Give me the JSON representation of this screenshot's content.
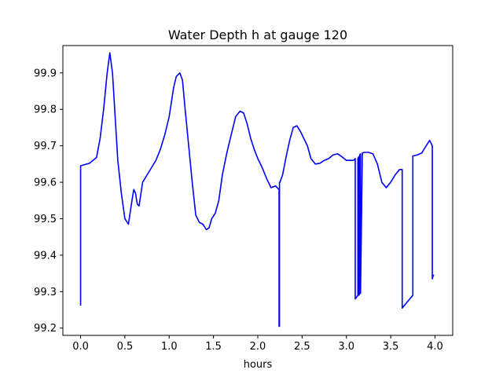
{
  "chart_data": {
    "type": "line",
    "title": "Water Depth h at gauge 120",
    "xlabel": "hours",
    "ylabel": "",
    "xlim": [
      -0.2,
      4.2
    ],
    "ylim": [
      99.18,
      99.975
    ],
    "xticks": [
      0.0,
      0.5,
      1.0,
      1.5,
      2.0,
      2.5,
      3.0,
      3.5,
      4.0
    ],
    "xtick_labels": [
      "0.0",
      "0.5",
      "1.0",
      "1.5",
      "2.0",
      "2.5",
      "3.0",
      "3.5",
      "4.0"
    ],
    "yticks": [
      99.2,
      99.3,
      99.4,
      99.5,
      99.6,
      99.7,
      99.8,
      99.9
    ],
    "ytick_labels": [
      "99.2",
      "99.3",
      "99.4",
      "99.5",
      "99.6",
      "99.7",
      "99.8",
      "99.9"
    ],
    "grid": false,
    "series": [
      {
        "color": "#0000ff",
        "x": [
          0.0,
          0.0,
          0.04,
          0.1,
          0.18,
          0.22,
          0.26,
          0.3,
          0.33,
          0.36,
          0.39,
          0.42,
          0.46,
          0.5,
          0.54,
          0.58,
          0.6,
          0.62,
          0.64,
          0.66,
          0.7,
          0.75,
          0.8,
          0.85,
          0.9,
          0.95,
          1.0,
          1.05,
          1.08,
          1.12,
          1.15,
          1.18,
          1.22,
          1.26,
          1.3,
          1.34,
          1.38,
          1.42,
          1.45,
          1.48,
          1.52,
          1.56,
          1.6,
          1.65,
          1.7,
          1.75,
          1.8,
          1.84,
          1.88,
          1.92,
          1.96,
          2.0,
          2.05,
          2.1,
          2.15,
          2.2,
          2.24,
          2.24,
          2.245,
          2.245,
          2.25,
          2.28,
          2.32,
          2.36,
          2.4,
          2.44,
          2.48,
          2.52,
          2.56,
          2.6,
          2.65,
          2.7,
          2.75,
          2.8,
          2.85,
          2.9,
          2.95,
          3.0,
          3.05,
          3.08,
          3.1,
          3.1,
          3.13,
          3.13,
          3.14,
          3.14,
          3.15,
          3.15,
          3.16,
          3.16,
          3.18,
          3.2,
          3.25,
          3.3,
          3.35,
          3.4,
          3.45,
          3.5,
          3.55,
          3.6,
          3.63,
          3.63,
          3.75,
          3.75,
          3.8,
          3.85,
          3.9,
          3.94,
          3.97,
          3.97,
          3.98,
          3.99
        ],
        "y": [
          99.262,
          99.645,
          99.648,
          99.652,
          99.668,
          99.72,
          99.8,
          99.9,
          99.955,
          99.9,
          99.78,
          99.66,
          99.57,
          99.5,
          99.485,
          99.55,
          99.58,
          99.57,
          99.54,
          99.535,
          99.6,
          99.62,
          99.64,
          99.66,
          99.69,
          99.73,
          99.78,
          99.86,
          99.89,
          99.9,
          99.88,
          99.8,
          99.7,
          99.6,
          99.51,
          99.49,
          99.485,
          99.47,
          99.475,
          99.5,
          99.515,
          99.55,
          99.62,
          99.68,
          99.73,
          99.78,
          99.795,
          99.79,
          99.76,
          99.72,
          99.69,
          99.665,
          99.64,
          99.61,
          99.585,
          99.59,
          99.58,
          99.205,
          99.205,
          99.6,
          99.6,
          99.62,
          99.67,
          99.715,
          99.75,
          99.755,
          99.74,
          99.72,
          99.7,
          99.665,
          99.65,
          99.652,
          99.66,
          99.665,
          99.675,
          99.678,
          99.67,
          99.66,
          99.66,
          99.66,
          99.665,
          99.28,
          99.29,
          99.665,
          99.67,
          99.29,
          99.295,
          99.675,
          99.678,
          99.295,
          99.68,
          99.682,
          99.682,
          99.678,
          99.65,
          99.6,
          99.585,
          99.6,
          99.62,
          99.635,
          99.635,
          99.255,
          99.29,
          99.672,
          99.675,
          99.68,
          99.7,
          99.715,
          99.7,
          99.335,
          99.345,
          99.345
        ]
      }
    ]
  }
}
